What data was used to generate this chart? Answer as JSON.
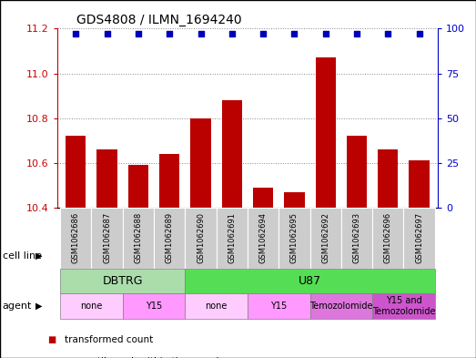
{
  "title": "GDS4808 / ILMN_1694240",
  "samples": [
    "GSM1062686",
    "GSM1062687",
    "GSM1062688",
    "GSM1062689",
    "GSM1062690",
    "GSM1062691",
    "GSM1062694",
    "GSM1062695",
    "GSM1062692",
    "GSM1062693",
    "GSM1062696",
    "GSM1062697"
  ],
  "transformed_counts": [
    10.72,
    10.66,
    10.59,
    10.64,
    10.8,
    10.88,
    10.49,
    10.47,
    11.07,
    10.72,
    10.66,
    10.61
  ],
  "percentile_ranks": [
    97,
    97,
    97,
    97,
    97,
    97,
    97,
    97,
    97,
    97,
    97,
    97
  ],
  "ylim_left": [
    10.4,
    11.2
  ],
  "ylim_right": [
    0,
    100
  ],
  "yticks_left": [
    10.4,
    10.6,
    10.8,
    11.0,
    11.2
  ],
  "yticks_right": [
    0,
    25,
    50,
    75,
    100
  ],
  "bar_color": "#bb0000",
  "dot_color": "#0000bb",
  "bar_bottom": 10.4,
  "cell_line_groups": [
    {
      "label": "DBTRG",
      "start": 0,
      "end": 3,
      "color": "#aaddaa"
    },
    {
      "label": "U87",
      "start": 4,
      "end": 11,
      "color": "#55dd55"
    }
  ],
  "agent_groups": [
    {
      "label": "none",
      "start": 0,
      "end": 1,
      "color": "#ffccff"
    },
    {
      "label": "Y15",
      "start": 2,
      "end": 3,
      "color": "#ff99ff"
    },
    {
      "label": "none",
      "start": 4,
      "end": 5,
      "color": "#ffccff"
    },
    {
      "label": "Y15",
      "start": 6,
      "end": 7,
      "color": "#ff99ff"
    },
    {
      "label": "Temozolomide",
      "start": 8,
      "end": 9,
      "color": "#dd77dd"
    },
    {
      "label": "Y15 and\nTemozolomide",
      "start": 10,
      "end": 11,
      "color": "#cc55cc"
    }
  ],
  "tick_label_color_left": "#cc0000",
  "tick_label_color_right": "#0000cc",
  "background_color": "#ffffff",
  "grid_color": "#888888",
  "sample_box_color": "#cccccc",
  "bar_width": 0.65,
  "figsize": [
    5.23,
    3.93
  ],
  "dpi": 100
}
